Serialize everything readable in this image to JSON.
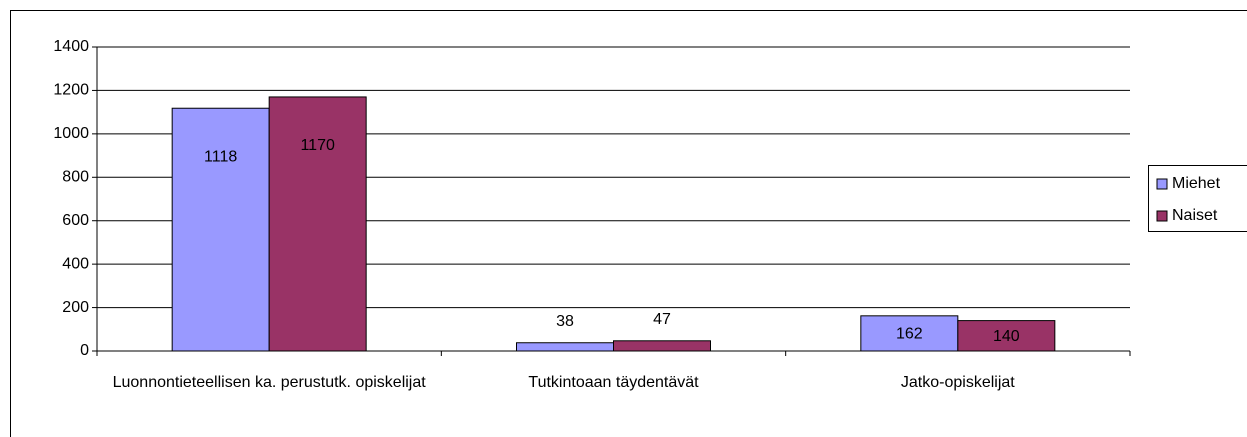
{
  "chart_data": {
    "type": "bar",
    "categories": [
      "Luonnontieteellisen ka. perustutk. opiskelijat",
      "Tutkintoaan täydentävät",
      "Jatko-opiskelijat"
    ],
    "series": [
      {
        "name": "Miehet",
        "color": "#9999ff",
        "values": [
          1118,
          38,
          162
        ]
      },
      {
        "name": "Naiset",
        "color": "#993366",
        "values": [
          1170,
          47,
          140
        ]
      }
    ],
    "ylim": [
      0,
      1400
    ],
    "yticks": [
      0,
      200,
      400,
      600,
      800,
      1000,
      1200,
      1400
    ],
    "grid": true,
    "legend": "right"
  }
}
